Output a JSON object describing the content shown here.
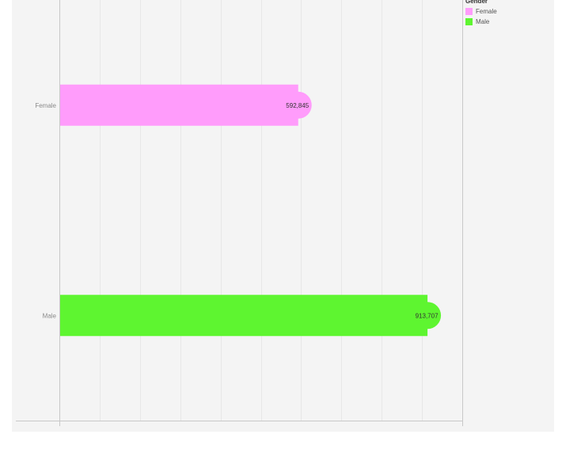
{
  "chart_data": {
    "type": "bar",
    "orientation": "horizontal",
    "categories": [
      "Female",
      "Male"
    ],
    "values": [
      592845,
      913707
    ],
    "value_labels": [
      "592,845",
      "913,707"
    ],
    "colors": [
      "#ff9cfb",
      "#5ef530"
    ],
    "xlim": [
      0,
      1000000
    ],
    "grid": true,
    "title": "",
    "xlabel": "",
    "ylabel": "",
    "legend": {
      "title": "Gender",
      "position": "top-right",
      "entries": [
        "Female",
        "Male"
      ]
    }
  },
  "colors": {
    "pane_background": "#f4f4f4",
    "gridline": "#e7e7e7",
    "axis": "#c8c8c8"
  }
}
